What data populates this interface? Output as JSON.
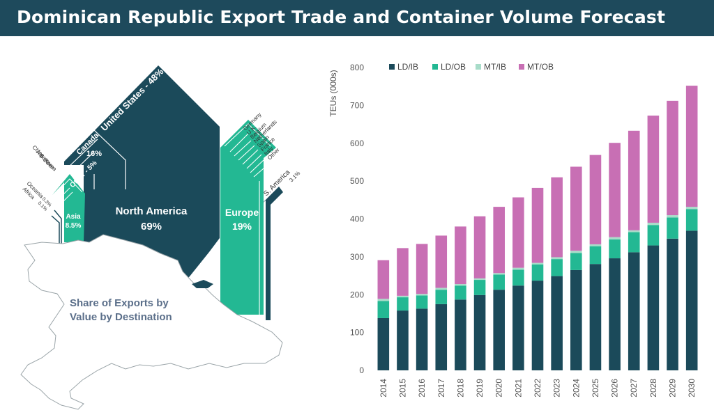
{
  "title": "Dominican Republic Export Trade and Container Volume Forecast",
  "colors": {
    "header_bg": "#1e4a5c",
    "north_america": "#1b4a5a",
    "europe": "#23b893",
    "asia": "#23b893",
    "s_america": "#1b4a5a",
    "LD/IB": "#1b4a5a",
    "LD/OB": "#23b893",
    "MT/IB": "#a8dcc9",
    "MT/OB": "#c86fb4",
    "axis_text": "#555555",
    "map_caption": "#5b6f8a"
  },
  "map": {
    "caption_line1": "Share of Exports by",
    "caption_line2": "Value by Destination",
    "north_america": {
      "name": "North America",
      "value": "69%"
    },
    "europe": {
      "name": "Europe",
      "value": "19%"
    },
    "asia": {
      "name": "Asia",
      "value": "8.5%"
    },
    "us_label": "United States - 48%",
    "canada_name": "Canada",
    "canada_value": "16%",
    "na_other_label": "Other - 5%",
    "s_america_label": "S. America",
    "s_america_value": "3.1%",
    "oceania_label": "Oceania",
    "oceania_value": "0.3%",
    "africa_label": "Africa",
    "africa_value": "0.1%",
    "asia_items": [
      "China",
      "Japan",
      "S. Korea",
      "Other"
    ],
    "europe_items": [
      "Germany",
      "U.K.",
      "Belgium",
      "Netherlands",
      "Spain",
      "France",
      "Italy",
      "Other"
    ]
  },
  "chart_data": {
    "type": "bar",
    "stacked": true,
    "ylabel": "TEUs (000s)",
    "xlabel": "",
    "ylim": [
      0,
      800
    ],
    "yticks": [
      0,
      100,
      200,
      300,
      400,
      500,
      600,
      700,
      800
    ],
    "grid": false,
    "legend_position": "top",
    "categories": [
      "2014",
      "2015",
      "2016",
      "2017",
      "2018",
      "2019",
      "2020",
      "2021",
      "2022",
      "2023",
      "2024",
      "2025",
      "2026",
      "2027",
      "2028",
      "2029",
      "2030"
    ],
    "series": [
      {
        "name": "LD/IB",
        "values": [
          138,
          158,
          163,
          175,
          187,
          199,
          213,
          224,
          237,
          249,
          265,
          281,
          296,
          312,
          330,
          348,
          369
        ]
      },
      {
        "name": "LD/OB",
        "values": [
          45,
          35,
          35,
          38,
          37,
          40,
          40,
          42,
          43,
          45,
          45,
          47,
          50,
          53,
          54,
          56,
          57
        ]
      },
      {
        "name": "MT/IB",
        "values": [
          6,
          4,
          4,
          5,
          4,
          4,
          4,
          5,
          4,
          5,
          6,
          5,
          6,
          5,
          6,
          6,
          6
        ]
      },
      {
        "name": "MT/OB",
        "values": [
          102,
          126,
          132,
          138,
          152,
          164,
          175,
          186,
          198,
          211,
          222,
          236,
          249,
          263,
          283,
          302,
          320
        ]
      }
    ]
  }
}
